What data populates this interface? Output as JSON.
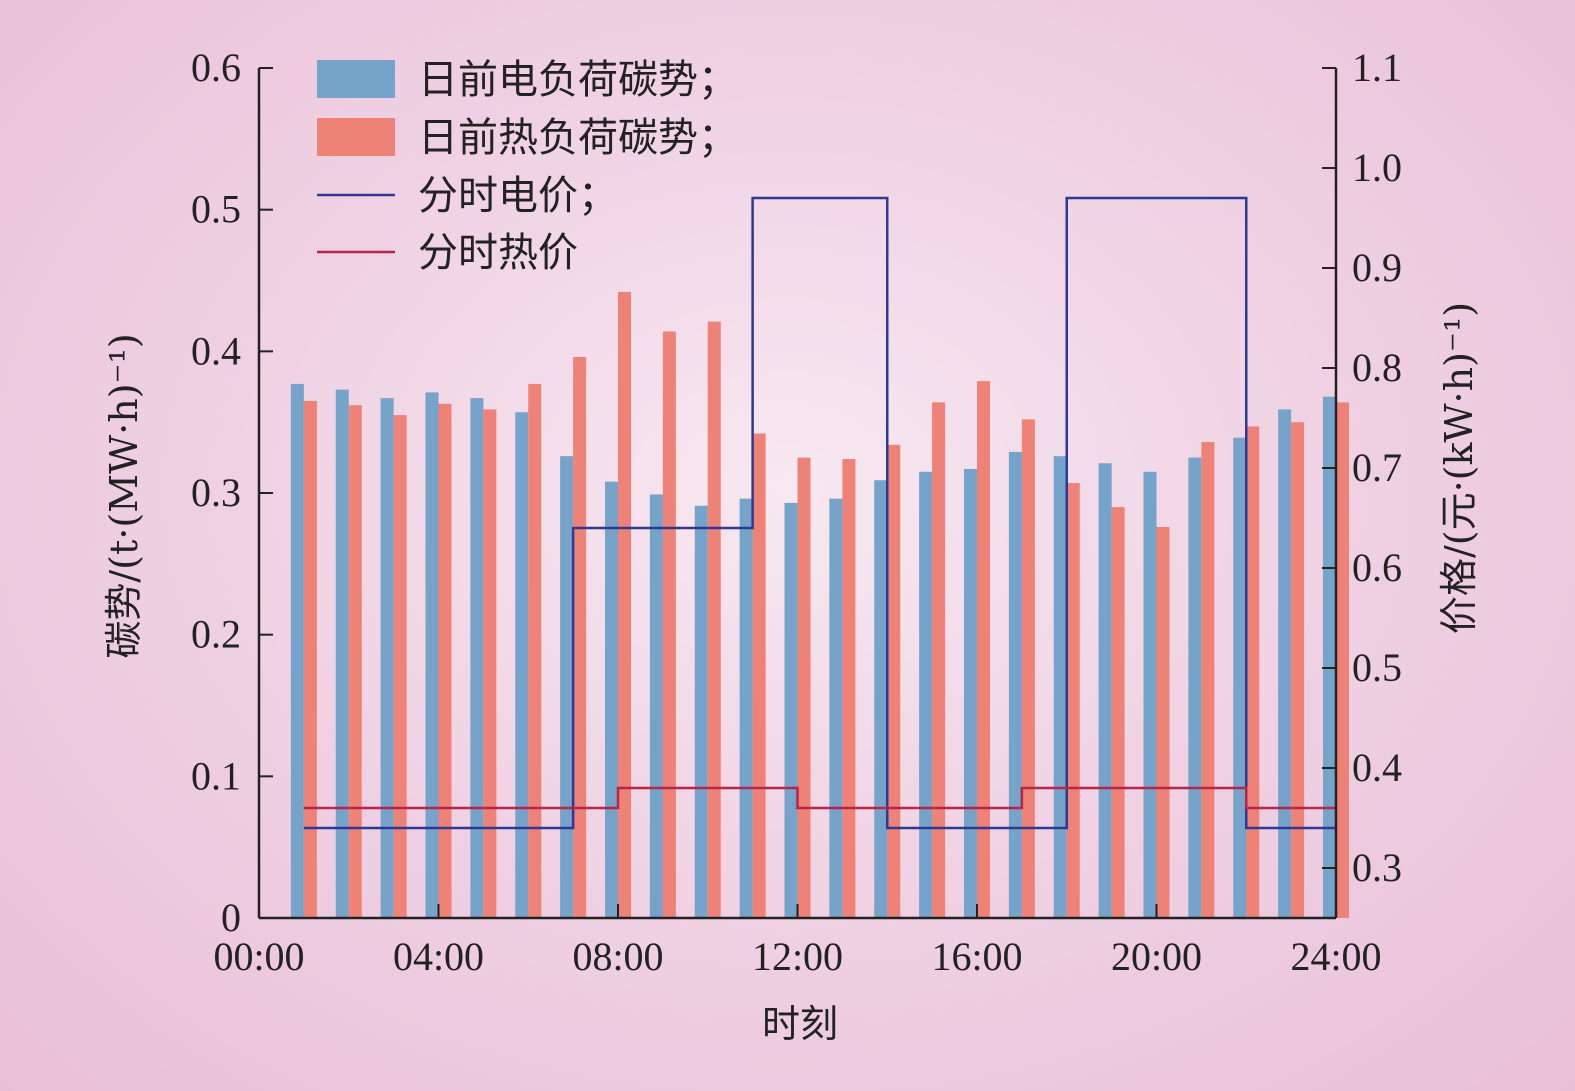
{
  "chart_data": {
    "type": "bar",
    "xlabel": "时刻",
    "ylabel_left": "碳势/(t·(MW·h)⁻¹)",
    "ylabel_right": "价格/(元·(kW·h)⁻¹)",
    "x_ticks": [
      "00:00",
      "04:00",
      "08:00",
      "12:00",
      "16:00",
      "20:00",
      "24:00"
    ],
    "x_range": [
      0,
      24
    ],
    "ylim_left": [
      0,
      0.6
    ],
    "ylim_right": [
      0.25,
      1.1
    ],
    "y_ticks_left": [
      "0",
      "0.1",
      "0.2",
      "0.3",
      "0.4",
      "0.5",
      "0.6"
    ],
    "y_ticks_right": [
      "0.3",
      "0.4",
      "0.5",
      "0.6",
      "0.7",
      "0.8",
      "0.9",
      "1.0",
      "1.1"
    ],
    "hours": [
      1,
      2,
      3,
      4,
      5,
      6,
      7,
      8,
      9,
      10,
      11,
      12,
      13,
      14,
      15,
      16,
      17,
      18,
      19,
      20,
      21,
      22,
      23,
      24
    ],
    "bar_series": [
      {
        "name": "日前电负荷碳势；",
        "color": "#76a3c9",
        "values": [
          0.377,
          0.373,
          0.367,
          0.371,
          0.367,
          0.357,
          0.326,
          0.308,
          0.299,
          0.291,
          0.296,
          0.293,
          0.296,
          0.309,
          0.315,
          0.317,
          0.329,
          0.326,
          0.321,
          0.315,
          0.325,
          0.339,
          0.359,
          0.368
        ]
      },
      {
        "name": "日前热负荷碳势；",
        "color": "#ee8276",
        "values": [
          0.365,
          0.362,
          0.355,
          0.363,
          0.359,
          0.377,
          0.396,
          0.442,
          0.414,
          0.421,
          0.342,
          0.325,
          0.324,
          0.334,
          0.364,
          0.379,
          0.352,
          0.307,
          0.29,
          0.276,
          0.336,
          0.347,
          0.35,
          0.364
        ]
      }
    ],
    "line_series": [
      {
        "name": "分时电价；",
        "color": "#2c3a94",
        "axis": "right",
        "steps": [
          {
            "from": 1,
            "to": 7,
            "value": 0.34
          },
          {
            "from": 7,
            "to": 11,
            "value": 0.64
          },
          {
            "from": 11,
            "to": 14,
            "value": 0.97
          },
          {
            "from": 14,
            "to": 18,
            "value": 0.34
          },
          {
            "from": 18,
            "to": 22,
            "value": 0.97
          },
          {
            "from": 22,
            "to": 24,
            "value": 0.34
          }
        ]
      },
      {
        "name": "分时热价",
        "color": "#b8254a",
        "axis": "right",
        "steps": [
          {
            "from": 1,
            "to": 8,
            "value": 0.36
          },
          {
            "from": 8,
            "to": 12,
            "value": 0.38
          },
          {
            "from": 12,
            "to": 17,
            "value": 0.36
          },
          {
            "from": 17,
            "to": 22,
            "value": 0.38
          },
          {
            "from": 22,
            "to": 24,
            "value": 0.36
          }
        ]
      }
    ],
    "legend_position": "top-left",
    "grid": false
  }
}
